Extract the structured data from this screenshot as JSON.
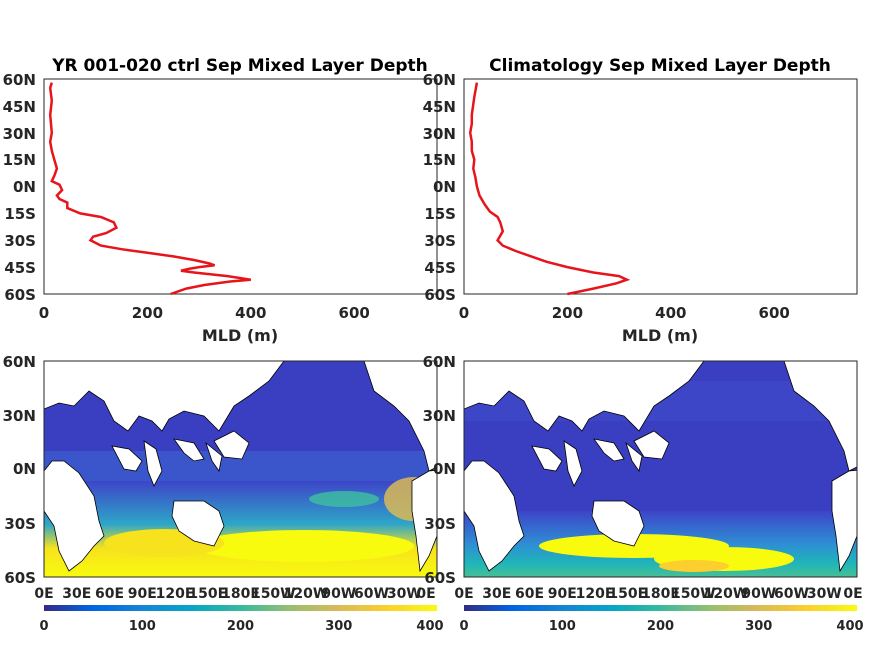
{
  "chart_data": [
    {
      "type": "line",
      "title": "YR 001-020 ctrl Sep Mixed Layer Depth",
      "xlabel": "MLD (m)",
      "ylabel": "",
      "xlim": [
        0,
        760
      ],
      "ylim": [
        -60,
        60
      ],
      "xticks": [
        "0",
        "200",
        "400",
        "600"
      ],
      "yticks": [
        "60N",
        "45N",
        "30N",
        "15N",
        "0N",
        "15S",
        "30S",
        "45S",
        "60S"
      ],
      "series": [
        {
          "color": "#e8141b",
          "points": [
            [
              245,
              -60
            ],
            [
              275,
              -57
            ],
            [
              310,
              -55
            ],
            [
              360,
              -53
            ],
            [
              400,
              -52
            ],
            [
              355,
              -50
            ],
            [
              290,
              -48
            ],
            [
              265,
              -47
            ],
            [
              280,
              -46
            ],
            [
              300,
              -45
            ],
            [
              330,
              -44
            ],
            [
              320,
              -43
            ],
            [
              290,
              -41
            ],
            [
              250,
              -39
            ],
            [
              200,
              -37
            ],
            [
              150,
              -35
            ],
            [
              110,
              -33
            ],
            [
              90,
              -30
            ],
            [
              95,
              -28
            ],
            [
              120,
              -26
            ],
            [
              140,
              -23
            ],
            [
              135,
              -20
            ],
            [
              110,
              -17
            ],
            [
              70,
              -15
            ],
            [
              45,
              -12
            ],
            [
              45,
              -9
            ],
            [
              30,
              -7
            ],
            [
              25,
              -5
            ],
            [
              35,
              -2
            ],
            [
              30,
              1
            ],
            [
              15,
              3
            ],
            [
              20,
              6
            ],
            [
              25,
              10
            ],
            [
              20,
              15
            ],
            [
              15,
              20
            ],
            [
              12,
              25
            ],
            [
              15,
              30
            ],
            [
              12,
              40
            ],
            [
              15,
              48
            ],
            [
              12,
              55
            ],
            [
              15,
              58
            ]
          ]
        }
      ]
    },
    {
      "type": "line",
      "title": "Climatology Sep Mixed Layer Depth",
      "xlabel": "MLD (m)",
      "ylabel": "",
      "xlim": [
        0,
        760
      ],
      "ylim": [
        -60,
        60
      ],
      "xticks": [
        "0",
        "200",
        "400",
        "600"
      ],
      "yticks": [
        "60N",
        "45N",
        "30N",
        "15N",
        "0N",
        "15S",
        "30S",
        "45S",
        "60S"
      ],
      "series": [
        {
          "color": "#e8141b",
          "points": [
            [
              200,
              -60
            ],
            [
              250,
              -57
            ],
            [
              295,
              -54
            ],
            [
              315,
              -52
            ],
            [
              300,
              -50
            ],
            [
              250,
              -48
            ],
            [
              200,
              -45
            ],
            [
              160,
              -42
            ],
            [
              130,
              -39
            ],
            [
              100,
              -36
            ],
            [
              75,
              -33
            ],
            [
              65,
              -30
            ],
            [
              75,
              -25
            ],
            [
              70,
              -20
            ],
            [
              65,
              -17
            ],
            [
              50,
              -14
            ],
            [
              40,
              -10
            ],
            [
              30,
              -5
            ],
            [
              25,
              0
            ],
            [
              22,
              5
            ],
            [
              18,
              10
            ],
            [
              20,
              15
            ],
            [
              15,
              20
            ],
            [
              15,
              25
            ],
            [
              12,
              30
            ],
            [
              15,
              35
            ],
            [
              15,
              40
            ],
            [
              20,
              50
            ],
            [
              25,
              58
            ]
          ]
        }
      ]
    },
    {
      "type": "heatmap",
      "yticks": [
        "60N",
        "30N",
        "0N",
        "30S",
        "60S"
      ],
      "xticks": [
        "0E",
        "30E",
        "60E",
        "90E",
        "120E",
        "150E",
        "180E",
        "150W",
        "120W",
        "90W",
        "60W",
        "30W",
        "0E"
      ],
      "colorbar": {
        "ticks": [
          "0",
          "100",
          "200",
          "300",
          "400"
        ],
        "range": [
          0,
          400
        ]
      }
    },
    {
      "type": "heatmap",
      "yticks": [
        "60N",
        "30N",
        "0N",
        "30S",
        "60S"
      ],
      "xticks": [
        "0E",
        "30E",
        "60E",
        "90E",
        "120E",
        "150E",
        "180E",
        "150W",
        "120W",
        "90W",
        "60W",
        "30W",
        "0E"
      ],
      "colorbar": {
        "ticks": [
          "0",
          "100",
          "200",
          "300",
          "400"
        ],
        "range": [
          0,
          400
        ]
      }
    }
  ]
}
